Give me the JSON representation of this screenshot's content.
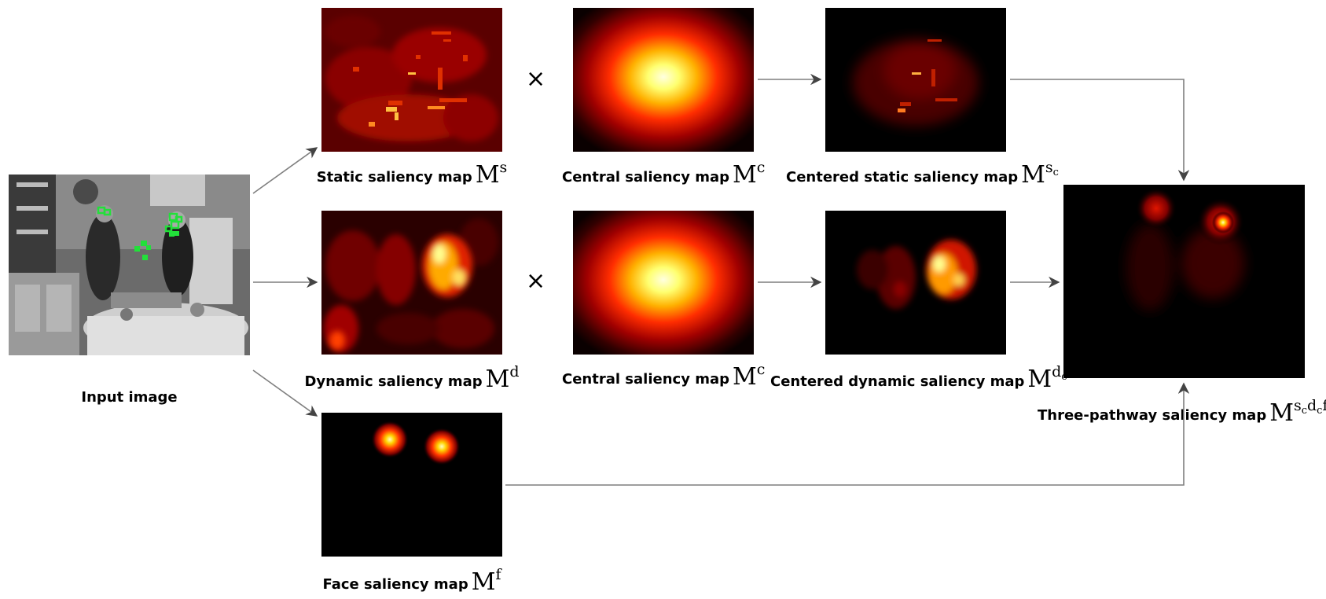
{
  "figure": {
    "input": {
      "label": "Input image"
    },
    "static": {
      "label": "Static saliency map",
      "symbol": "M",
      "sup": "s"
    },
    "central_top": {
      "label": "Central saliency map",
      "symbol": "M",
      "sup": "c"
    },
    "centered_static": {
      "label": "Centered static saliency map",
      "symbol": "M",
      "sup": "s",
      "sub": "c"
    },
    "dynamic": {
      "label": "Dynamic saliency map",
      "symbol": "M",
      "sup": "d"
    },
    "central_mid": {
      "label": "Central saliency map",
      "symbol": "M",
      "sup": "c"
    },
    "centered_dynamic": {
      "label": "Centered dynamic saliency map",
      "symbol": "M",
      "sup": "d",
      "sub": "c"
    },
    "face": {
      "label": "Face saliency map",
      "symbol": "M",
      "sup": "f"
    },
    "three_pathway": {
      "label": "Three-pathway saliency map",
      "symbol": "M",
      "sup1": "s",
      "sub1": "c",
      "sup2": "d",
      "sub2": "c",
      "sup3": "f"
    },
    "times_symbol": "×"
  },
  "colors": {
    "arrow": "#7f7f7f",
    "face_box": "#22e03a",
    "heat_low": "#000000",
    "heat_mid": "#cc0000",
    "heat_high": "#ffff66"
  }
}
